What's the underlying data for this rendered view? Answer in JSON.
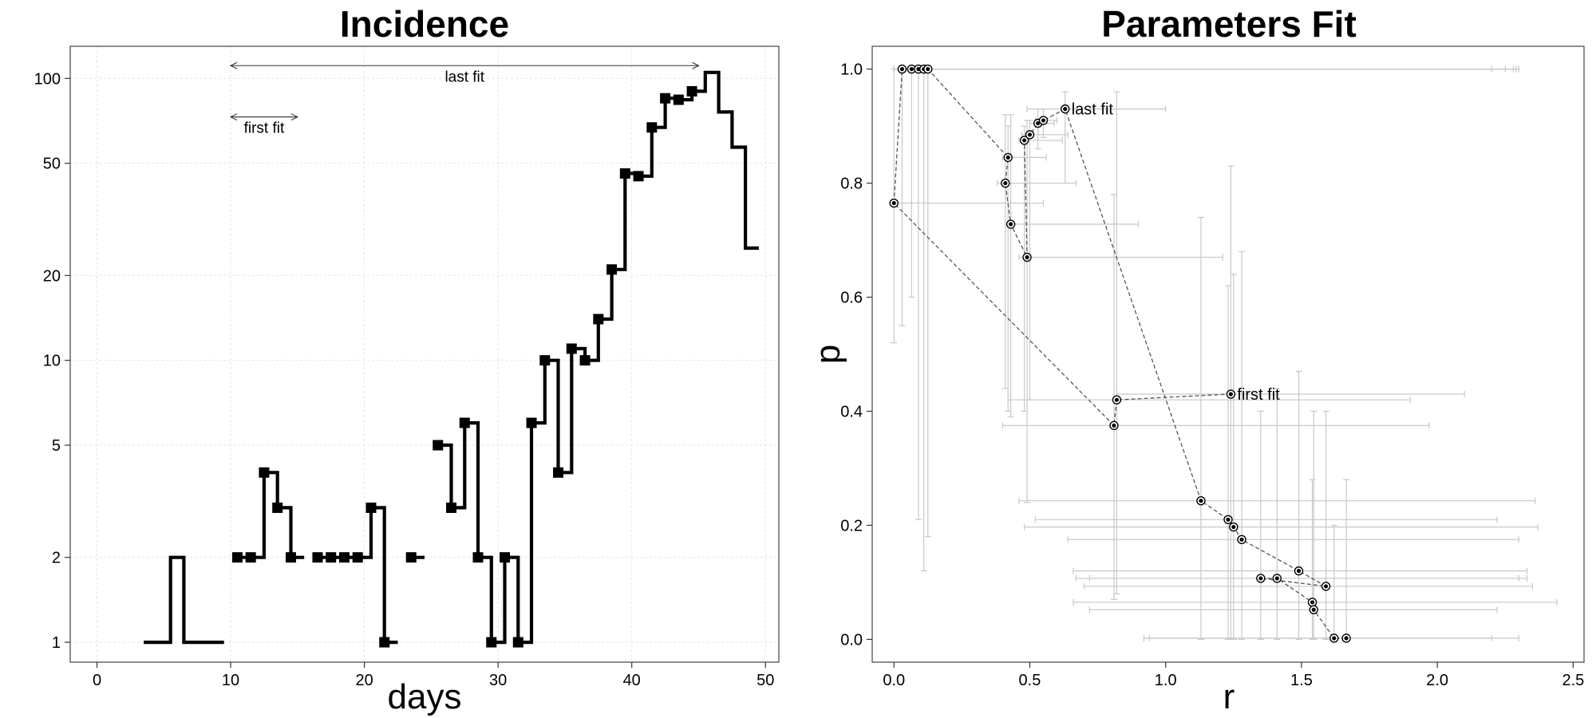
{
  "chart_data": [
    {
      "type": "line",
      "title": "Incidence",
      "xlabel": "days",
      "ylabel": "",
      "xlim": [
        -2,
        51
      ],
      "ylim": [
        0.85,
        130
      ],
      "yscale": "log",
      "xticks": [
        0,
        10,
        20,
        30,
        40,
        50
      ],
      "yticks": [
        1,
        2,
        5,
        10,
        20,
        50,
        100
      ],
      "grid": true,
      "color": "#000000",
      "step": {
        "x": [
          4,
          5,
          6,
          7,
          8,
          9,
          null,
          11,
          12,
          13,
          14,
          15,
          null,
          17,
          18,
          19,
          20,
          21,
          22,
          null,
          24,
          null,
          26,
          27,
          28,
          29,
          30,
          31,
          32,
          33,
          34,
          35,
          36,
          37,
          38,
          39,
          40,
          41,
          42,
          43,
          44,
          45,
          46,
          47,
          48,
          49
        ],
        "y": [
          1,
          1,
          2,
          1,
          1,
          1,
          null,
          2,
          2,
          4,
          3,
          2,
          null,
          2,
          2,
          2,
          2,
          3,
          1,
          null,
          2,
          null,
          5,
          3,
          6,
          2,
          1,
          2,
          1,
          6,
          10,
          4,
          11,
          10,
          14,
          21,
          46,
          45,
          67,
          85,
          84,
          90,
          105,
          76,
          57,
          25
        ]
      },
      "markers": {
        "x": [
          11,
          12,
          13,
          14,
          15,
          17,
          18,
          19,
          20,
          21,
          22,
          24,
          26,
          27,
          28,
          29,
          30,
          31,
          32,
          33,
          34,
          35,
          36,
          37,
          38,
          39,
          40,
          41,
          42,
          43,
          44,
          45
        ],
        "y": [
          2,
          2,
          4,
          3,
          2,
          2,
          2,
          2,
          2,
          3,
          1,
          2,
          5,
          3,
          6,
          2,
          1,
          2,
          1,
          6,
          10,
          4,
          11,
          10,
          14,
          21,
          46,
          45,
          67,
          85,
          84,
          90
        ]
      },
      "annotations": [
        {
          "label": "last fit",
          "x_from": 10,
          "x_to": 45,
          "y": 111
        },
        {
          "label": "first fit",
          "x_from": 10,
          "x_to": 15,
          "y": 73
        }
      ]
    },
    {
      "type": "scatter",
      "title": "Parameters Fit",
      "xlabel": "r",
      "ylabel": "p",
      "xlim": [
        -0.08,
        2.54
      ],
      "ylim": [
        -0.04,
        1.04
      ],
      "xticks": [
        0.0,
        0.5,
        1.0,
        1.5,
        2.0,
        2.5
      ],
      "yticks": [
        0.0,
        0.2,
        0.4,
        0.6,
        0.8,
        1.0
      ],
      "tick_labels_x": [
        "0.0",
        "0.5",
        "1.0",
        "1.5",
        "2.0",
        "2.5"
      ],
      "tick_labels_y": [
        "0.0",
        "0.2",
        "0.4",
        "0.6",
        "0.8",
        "1.0"
      ],
      "grid": false,
      "color": "#000000",
      "errorbar_color": "#c8c8c8",
      "points": [
        {
          "r": 1.24,
          "p": 0.43,
          "rlo": 0.82,
          "rhi": 2.1,
          "plo": 0.0,
          "phi": 0.83
        },
        {
          "r": 0.82,
          "p": 0.42,
          "rlo": 0.42,
          "rhi": 1.9,
          "plo": 0.08,
          "phi": 0.96
        },
        {
          "r": 0.81,
          "p": 0.375,
          "rlo": 0.4,
          "rhi": 1.97,
          "plo": 0.07,
          "phi": 0.78
        },
        {
          "r": 0.0,
          "p": 0.765,
          "rlo": 0.0,
          "rhi": 0.55,
          "plo": 0.52,
          "phi": 1.0
        },
        {
          "r": 0.03,
          "p": 1.0,
          "rlo": 0.0,
          "rhi": 2.2,
          "plo": 0.55,
          "phi": 1.0
        },
        {
          "r": 0.065,
          "p": 1.0,
          "rlo": 0.0,
          "rhi": 2.25,
          "plo": 0.6,
          "phi": 1.0
        },
        {
          "r": 0.09,
          "p": 1.0,
          "rlo": 0.0,
          "rhi": 2.28,
          "plo": 0.21,
          "phi": 1.0
        },
        {
          "r": 0.11,
          "p": 1.0,
          "rlo": 0.0,
          "rhi": 2.29,
          "plo": 0.12,
          "phi": 1.0
        },
        {
          "r": 0.125,
          "p": 1.0,
          "rlo": 0.0,
          "rhi": 2.3,
          "plo": 0.18,
          "phi": 1.0
        },
        {
          "r": 0.42,
          "p": 0.845,
          "rlo": 0.4,
          "rhi": 0.56,
          "plo": 0.4,
          "phi": 0.9
        },
        {
          "r": 0.41,
          "p": 0.8,
          "rlo": 0.38,
          "rhi": 0.67,
          "plo": 0.44,
          "phi": 0.92
        },
        {
          "r": 0.43,
          "p": 0.728,
          "rlo": 0.41,
          "rhi": 0.9,
          "plo": 0.39,
          "phi": 0.92
        },
        {
          "r": 0.49,
          "p": 0.67,
          "rlo": 0.46,
          "rhi": 1.21,
          "plo": 0.24,
          "phi": 0.91
        },
        {
          "r": 0.48,
          "p": 0.875,
          "rlo": 0.46,
          "rhi": 0.62,
          "plo": 0.4,
          "phi": 0.9
        },
        {
          "r": 0.5,
          "p": 0.885,
          "rlo": 0.47,
          "rhi": 0.64,
          "plo": 0.42,
          "phi": 0.91
        },
        {
          "r": 0.53,
          "p": 0.905,
          "rlo": 0.5,
          "rhi": 0.59,
          "plo": 0.86,
          "phi": 0.93
        },
        {
          "r": 0.55,
          "p": 0.91,
          "rlo": 0.52,
          "rhi": 0.6,
          "plo": 0.88,
          "phi": 0.93
        },
        {
          "r": 0.63,
          "p": 0.93,
          "rlo": 0.49,
          "rhi": 1.0,
          "plo": 0.8,
          "phi": 0.96
        },
        {
          "r": 1.13,
          "p": 0.243,
          "rlo": 0.46,
          "rhi": 2.36,
          "plo": 0.0,
          "phi": 0.74
        },
        {
          "r": 1.23,
          "p": 0.21,
          "rlo": 0.52,
          "rhi": 2.22,
          "plo": 0.0,
          "phi": 0.62
        },
        {
          "r": 1.25,
          "p": 0.197,
          "rlo": 0.48,
          "rhi": 2.37,
          "plo": 0.0,
          "phi": 0.64
        },
        {
          "r": 1.28,
          "p": 0.175,
          "rlo": 0.64,
          "rhi": 2.3,
          "plo": 0.0,
          "phi": 0.68
        },
        {
          "r": 1.49,
          "p": 0.12,
          "rlo": 0.66,
          "rhi": 2.33,
          "plo": 0.0,
          "phi": 0.47
        },
        {
          "r": 1.59,
          "p": 0.093,
          "rlo": 0.7,
          "rhi": 2.35,
          "plo": 0.0,
          "phi": 0.4
        },
        {
          "r": 1.35,
          "p": 0.107,
          "rlo": 0.67,
          "rhi": 2.33,
          "plo": 0.0,
          "phi": 0.4
        },
        {
          "r": 1.41,
          "p": 0.107,
          "rlo": 0.72,
          "rhi": 2.3,
          "plo": 0.0,
          "phi": 0.44
        },
        {
          "r": 1.54,
          "p": 0.065,
          "rlo": 0.66,
          "rhi": 2.44,
          "plo": 0.0,
          "phi": 0.28
        },
        {
          "r": 1.545,
          "p": 0.052,
          "rlo": 0.72,
          "rhi": 2.22,
          "plo": 0.0,
          "phi": 0.4
        },
        {
          "r": 1.62,
          "p": 0.002,
          "rlo": 0.94,
          "rhi": 2.2,
          "plo": 0.0,
          "phi": 0.2
        },
        {
          "r": 1.665,
          "p": 0.002,
          "rlo": 0.92,
          "rhi": 2.3,
          "plo": 0.0,
          "phi": 0.28
        }
      ],
      "annotations": [
        {
          "label": "last fit",
          "r": 0.63,
          "p": 0.93
        },
        {
          "label": "first fit",
          "r": 1.24,
          "p": 0.43
        }
      ]
    }
  ]
}
